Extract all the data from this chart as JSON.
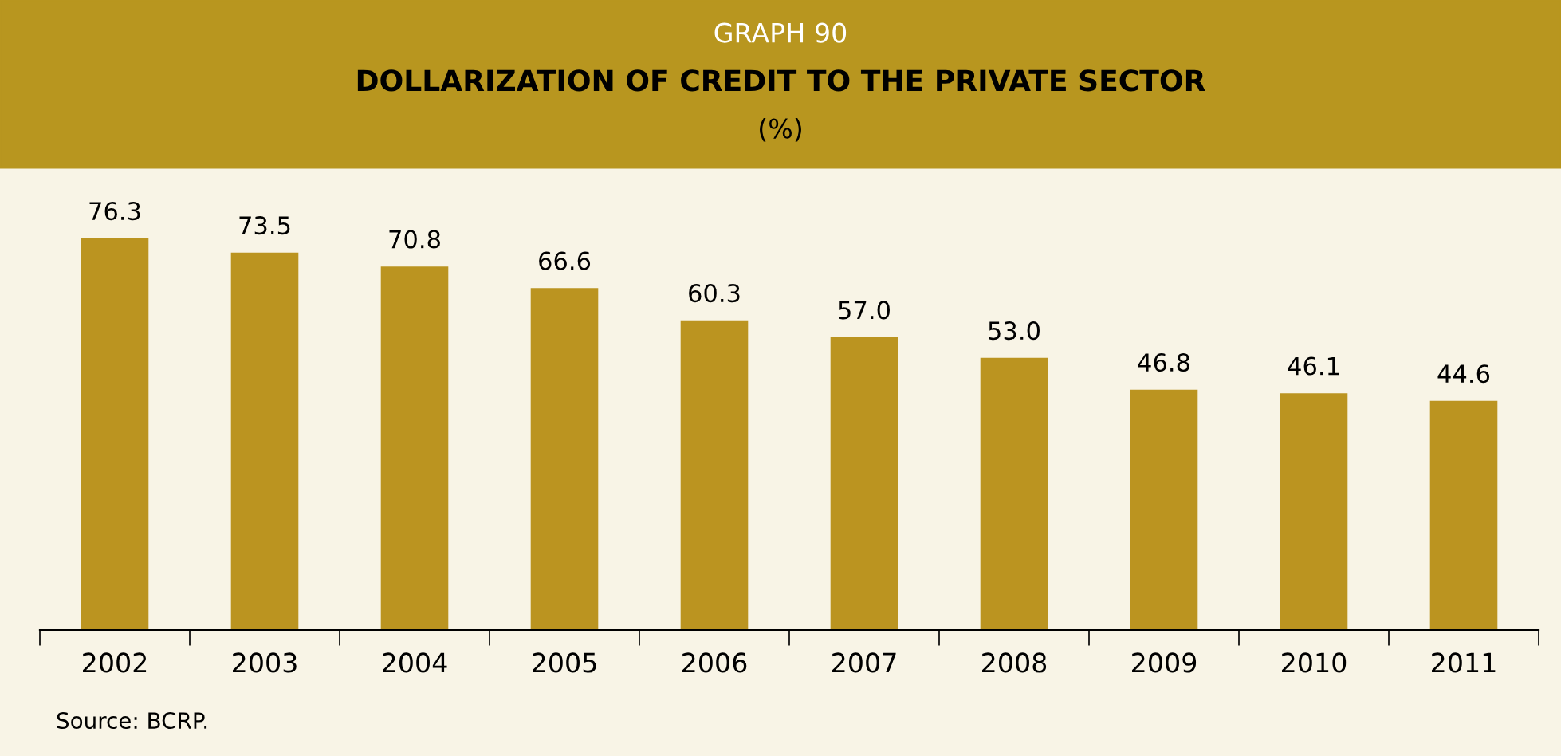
{
  "chart_data": {
    "type": "bar",
    "title": "DOLLARIZATION OF CREDIT TO THE PRIVATE SECTOR",
    "subtitle": "(%)",
    "annotations": [
      "GRAPH 90",
      "Source: BCRP."
    ],
    "categories": [
      "2002",
      "2003",
      "2004",
      "2005",
      "2006",
      "2007",
      "2008",
      "2009",
      "2010",
      "2011"
    ],
    "values": [
      76.3,
      73.5,
      70.8,
      66.6,
      60.3,
      57.0,
      53.0,
      46.8,
      46.1,
      44.6
    ],
    "value_labels": [
      "76.3",
      "73.5",
      "70.8",
      "66.6",
      "60.3",
      "57.0",
      "53.0",
      "46.8",
      "46.1",
      "44.6"
    ],
    "color": "#bb9420",
    "grid": false,
    "legend": false
  }
}
